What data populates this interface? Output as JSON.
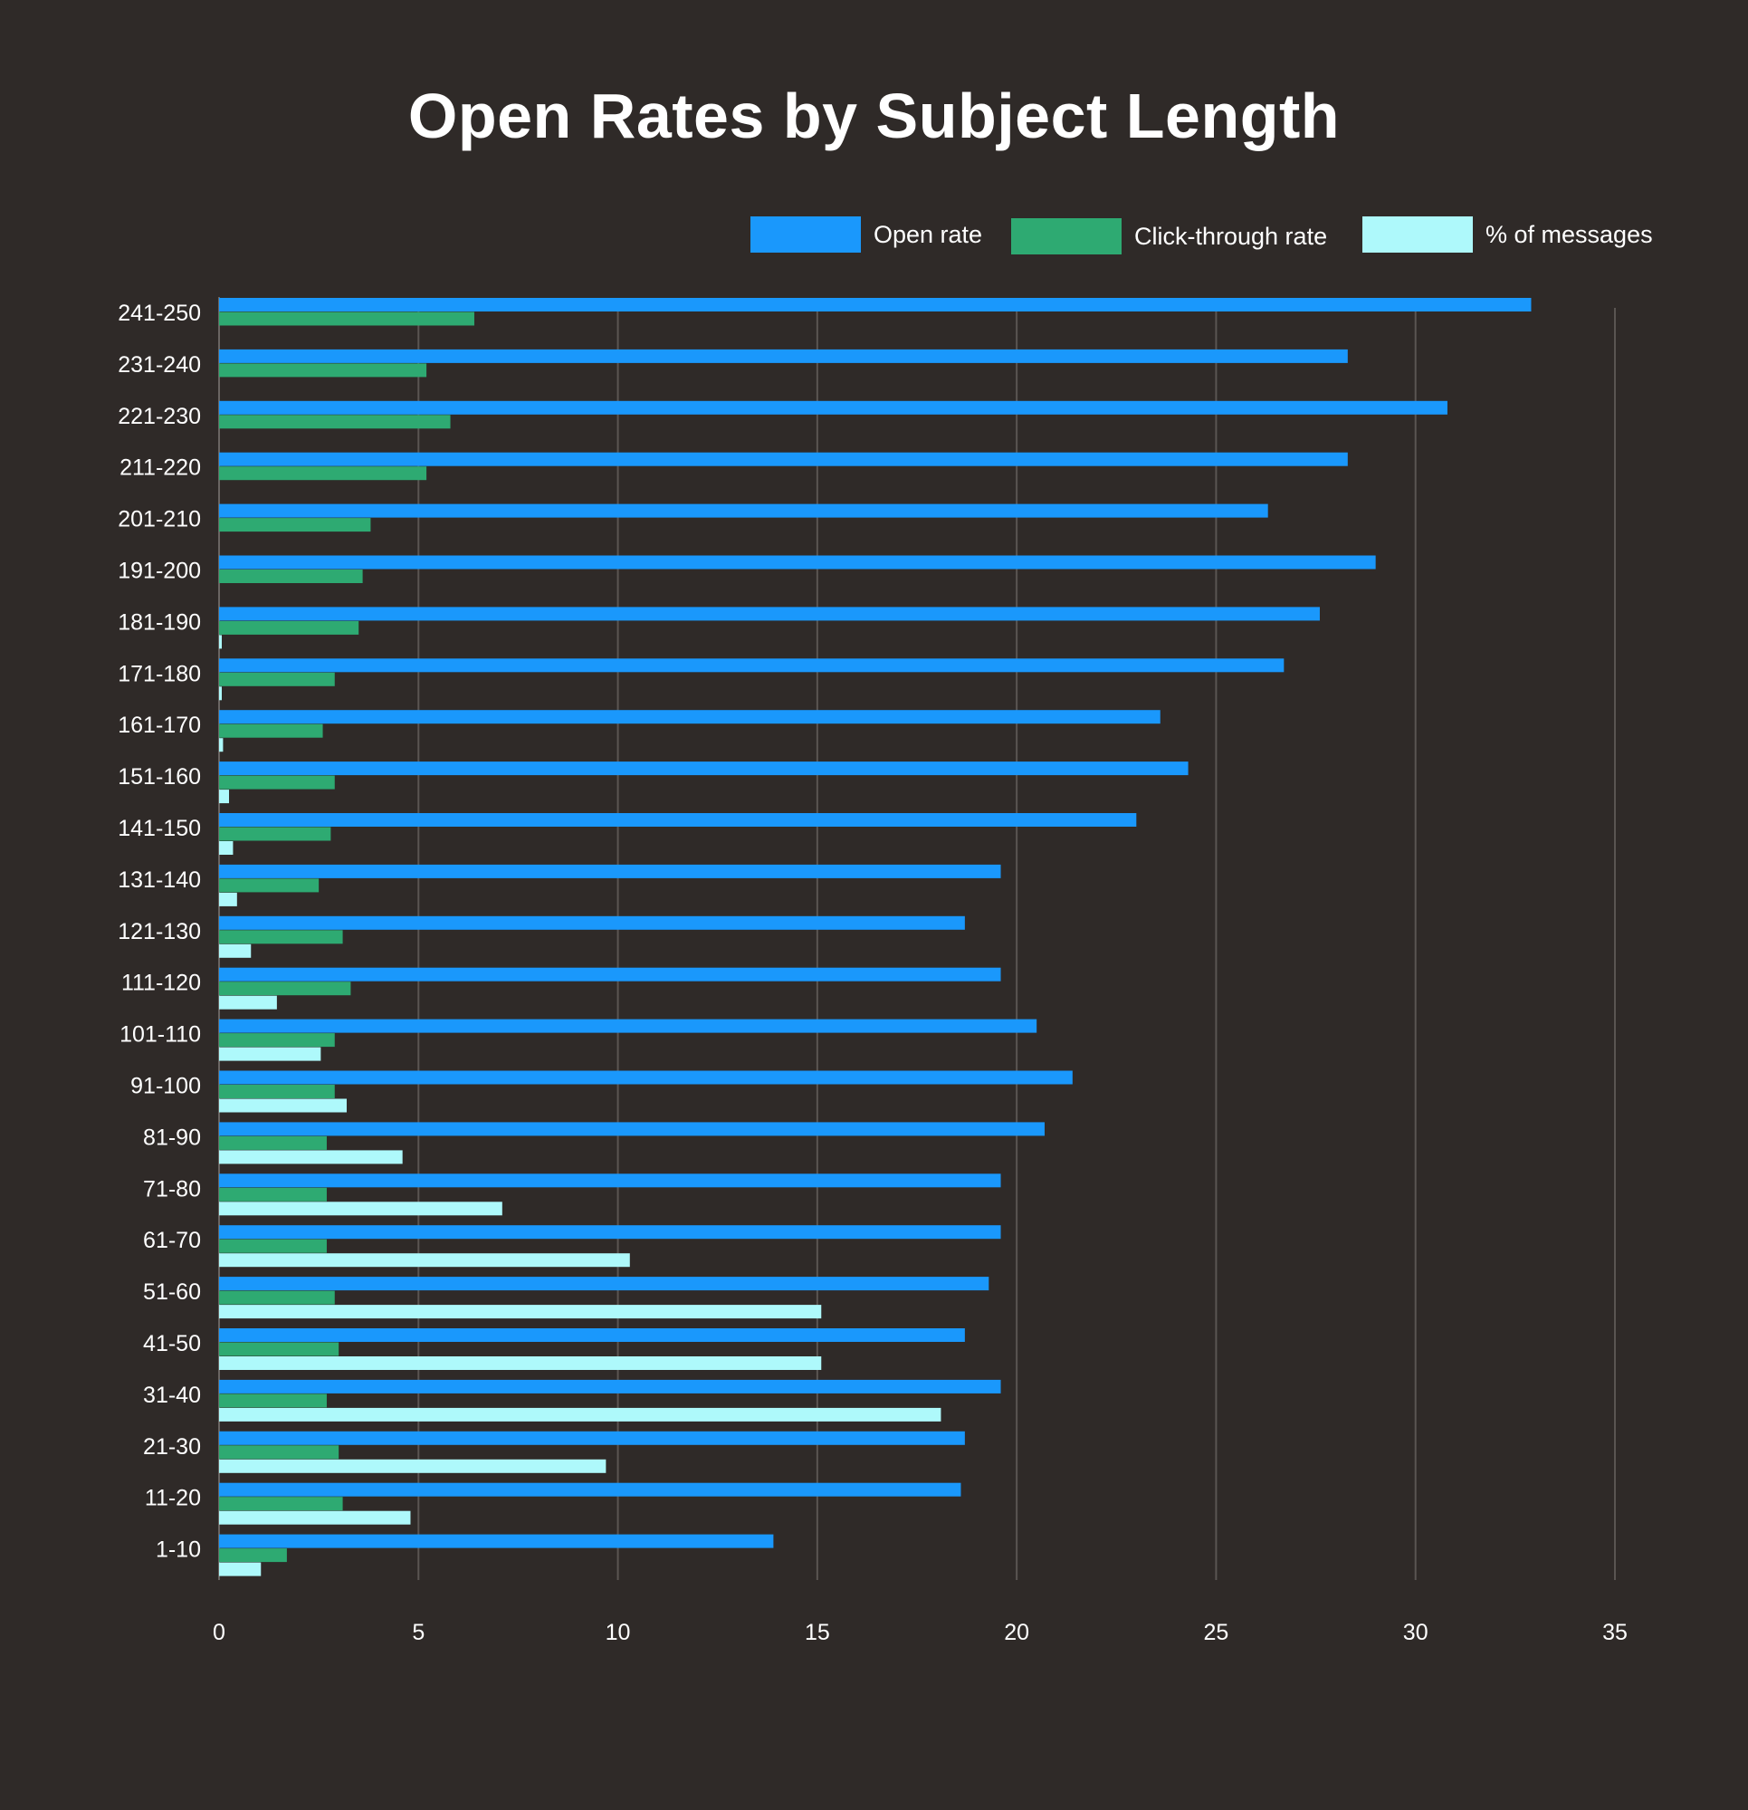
{
  "chart_data": {
    "type": "bar",
    "orientation": "horizontal",
    "title": "Open Rates by Subject Length",
    "xlabel": "",
    "ylabel": "",
    "xlim": [
      0,
      35
    ],
    "xticks": [
      "0",
      "5",
      "10",
      "15",
      "20",
      "25",
      "30",
      "35"
    ],
    "grid": "vertical",
    "legend_position": "top-right",
    "categories": [
      "241-250",
      "231-240",
      "221-230",
      "211-220",
      "201-210",
      "191-200",
      "181-190",
      "171-180",
      "161-170",
      "151-160",
      "141-150",
      "131-140",
      "121-130",
      "111-120",
      "101-110",
      "91-100",
      "81-90",
      "71-80",
      "61-70",
      "51-60",
      "41-50",
      "31-40",
      "21-30",
      "11-20",
      "1-10"
    ],
    "series": [
      {
        "name": "Open rate",
        "color": "#1a98fc",
        "values": [
          32.9,
          28.3,
          30.8,
          28.3,
          26.3,
          29.0,
          27.6,
          26.7,
          23.6,
          24.3,
          23.0,
          19.6,
          18.7,
          19.6,
          20.5,
          21.4,
          20.7,
          19.6,
          19.6,
          19.3,
          18.7,
          19.6,
          18.7,
          18.6,
          13.9
        ]
      },
      {
        "name": "Click-through rate",
        "color": "#2eaa72",
        "values": [
          6.4,
          5.2,
          5.8,
          5.2,
          3.8,
          3.6,
          3.5,
          2.9,
          2.6,
          2.9,
          2.8,
          2.5,
          3.1,
          3.3,
          2.9,
          2.9,
          2.7,
          2.7,
          2.7,
          2.9,
          3.0,
          2.7,
          3.0,
          3.1,
          1.7
        ]
      },
      {
        "name": "% of messages",
        "color": "#aef9fb",
        "values": [
          0.0,
          0.0,
          0.0,
          0.0,
          0.0,
          0.0,
          0.05,
          0.05,
          0.1,
          0.25,
          0.35,
          0.45,
          0.8,
          1.45,
          2.55,
          3.2,
          4.6,
          7.1,
          10.3,
          15.1,
          15.1,
          18.1,
          9.7,
          4.8,
          1.05
        ]
      }
    ]
  }
}
